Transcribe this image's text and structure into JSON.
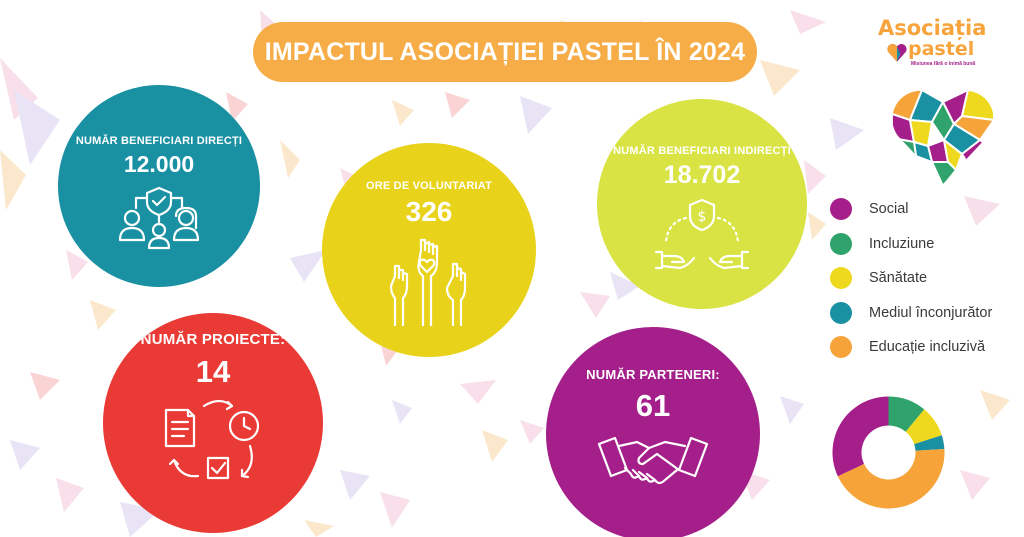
{
  "title": "IMPACTUL ASOCIAȚIEI PASTEL ÎN 2024",
  "logo": {
    "line1": "Asociația",
    "line2": "pastel",
    "tagline": "Misiunea fără o inimă bună"
  },
  "stats": {
    "direct": {
      "label": "NUMĂR BENEFICIARI DIRECȚI",
      "value": "12.000",
      "color": "#1a90a3",
      "icon": "people-shield-icon"
    },
    "volunteer": {
      "label": "ORE DE VOLUNTARIAT",
      "value": "326",
      "color": "#e9d31a",
      "icon": "raised-hands-icon"
    },
    "indirect": {
      "label": "NUMĂR BENEFICIARI INDIRECȚI",
      "value": "18.702",
      "color": "#d9e344",
      "icon": "hands-money-shield-icon"
    },
    "projects": {
      "label": "NUMĂR PROIECTE:",
      "value": "14",
      "color": "#ea3a35",
      "icon": "project-cycle-icon"
    },
    "partners": {
      "label": "NUMĂR PARTENERI:",
      "value": "61",
      "color": "#a51f8a",
      "icon": "handshake-icon"
    }
  },
  "legend": [
    {
      "label": "Social",
      "color": "#a51f8a"
    },
    {
      "label": "Incluziune",
      "color": "#2fa36b"
    },
    {
      "label": "Sănătate",
      "color": "#efd91f"
    },
    {
      "label": "Mediul înconjurător",
      "color": "#1a90a3"
    },
    {
      "label": "Educație incluzivă",
      "color": "#f6a33a"
    }
  ],
  "chart_data": {
    "type": "pie",
    "categories": [
      "Social",
      "Incluziune",
      "Sănătate",
      "Mediul înconjurător",
      "Educație incluzivă"
    ],
    "values": [
      32,
      11,
      9,
      4,
      44
    ],
    "colors": [
      "#a51f8a",
      "#2fa36b",
      "#efd91f",
      "#1a90a3",
      "#f6a33a"
    ],
    "title": "",
    "donut": true
  }
}
